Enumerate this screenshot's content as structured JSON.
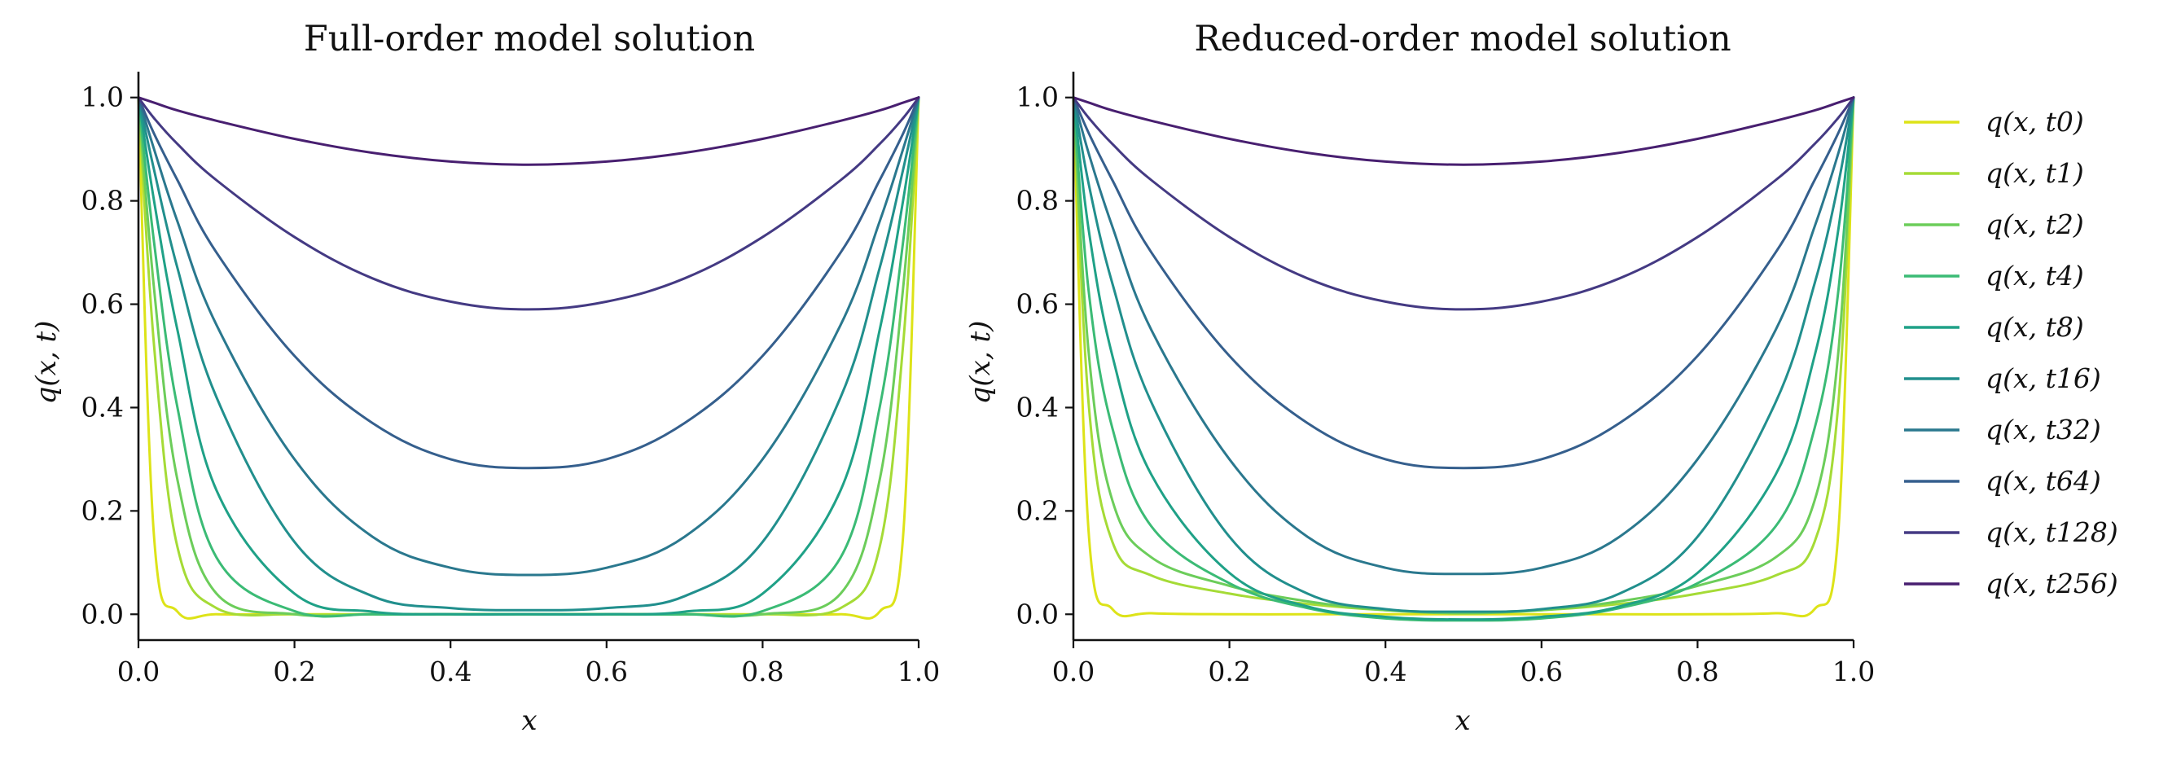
{
  "legend": {
    "placement": "right-outside",
    "entries": [
      "q(x, t0)",
      "q(x, t1)",
      "q(x, t2)",
      "q(x, t4)",
      "q(x, t8)",
      "q(x, t16)",
      "q(x, t32)",
      "q(x, t64)",
      "q(x, t128)",
      "q(x, t256)"
    ]
  },
  "chart_data": [
    {
      "type": "line",
      "title": "Full-order model solution",
      "xlabel": "x",
      "ylabel": "q(x, t)",
      "xlim": [
        0.0,
        1.0
      ],
      "ylim": [
        -0.05,
        1.05
      ],
      "xticks": [
        "0.0",
        "0.2",
        "0.4",
        "0.6",
        "0.8",
        "1.0"
      ],
      "yticks": [
        "0.0",
        "0.2",
        "0.4",
        "0.6",
        "0.8",
        "1.0"
      ],
      "grid": false,
      "x": [
        0.0,
        0.02,
        0.05,
        0.1,
        0.2,
        0.3,
        0.4,
        0.5,
        0.6,
        0.7,
        0.8,
        0.9,
        0.95,
        0.98,
        1.0
      ],
      "series": [
        {
          "name": "q(x, t0)",
          "color": "#dde318",
          "values": [
            1.0,
            0.15,
            0.005,
            0.0,
            0.0,
            0.0,
            0.0,
            0.0,
            0.0,
            0.0,
            0.0,
            0.0,
            0.005,
            0.15,
            1.0
          ]
        },
        {
          "name": "q(x, t1)",
          "color": "#a5db36",
          "values": [
            1.0,
            0.52,
            0.13,
            0.012,
            0.0,
            0.0,
            0.0,
            0.0,
            0.0,
            0.0,
            0.0,
            0.012,
            0.13,
            0.52,
            1.0
          ]
        },
        {
          "name": "q(x, t2)",
          "color": "#6ccd5a",
          "values": [
            1.0,
            0.63,
            0.26,
            0.04,
            0.0,
            0.0,
            0.0,
            0.0,
            0.0,
            0.0,
            0.0,
            0.04,
            0.26,
            0.63,
            1.0
          ]
        },
        {
          "name": "q(x, t4)",
          "color": "#3bbb75",
          "values": [
            1.0,
            0.72,
            0.4,
            0.11,
            0.006,
            0.0,
            0.0,
            0.0,
            0.0,
            0.0,
            0.006,
            0.11,
            0.4,
            0.72,
            1.0
          ]
        },
        {
          "name": "q(x, t8)",
          "color": "#1fa187",
          "values": [
            1.0,
            0.8,
            0.55,
            0.24,
            0.04,
            0.005,
            0.0,
            0.0,
            0.0,
            0.005,
            0.04,
            0.24,
            0.55,
            0.8,
            1.0
          ]
        },
        {
          "name": "q(x, t16)",
          "color": "#218f8d",
          "values": [
            1.0,
            0.86,
            0.67,
            0.42,
            0.14,
            0.035,
            0.012,
            0.008,
            0.012,
            0.035,
            0.14,
            0.42,
            0.67,
            0.86,
            1.0
          ]
        },
        {
          "name": "q(x, t32)",
          "color": "#2a788e",
          "values": [
            1.0,
            0.9,
            0.76,
            0.56,
            0.3,
            0.15,
            0.09,
            0.076,
            0.09,
            0.15,
            0.3,
            0.56,
            0.76,
            0.9,
            1.0
          ]
        },
        {
          "name": "q(x, t64)",
          "color": "#355f8d",
          "values": [
            1.0,
            0.93,
            0.84,
            0.7,
            0.5,
            0.37,
            0.3,
            0.283,
            0.3,
            0.37,
            0.5,
            0.7,
            0.84,
            0.93,
            1.0
          ]
        },
        {
          "name": "q(x, t128)",
          "color": "#443a83",
          "values": [
            1.0,
            0.96,
            0.91,
            0.84,
            0.73,
            0.65,
            0.605,
            0.59,
            0.605,
            0.65,
            0.73,
            0.84,
            0.91,
            0.96,
            1.0
          ]
        },
        {
          "name": "q(x, t256)",
          "color": "#481f70",
          "values": [
            1.0,
            0.99,
            0.975,
            0.955,
            0.92,
            0.893,
            0.876,
            0.87,
            0.876,
            0.893,
            0.92,
            0.955,
            0.975,
            0.99,
            1.0
          ]
        }
      ]
    },
    {
      "type": "line",
      "title": "Reduced-order model solution",
      "xlabel": "x",
      "ylabel": "q(x, t)",
      "xlim": [
        0.0,
        1.0
      ],
      "ylim": [
        -0.05,
        1.05
      ],
      "xticks": [
        "0.0",
        "0.2",
        "0.4",
        "0.6",
        "0.8",
        "1.0"
      ],
      "yticks": [
        "0.0",
        "0.2",
        "0.4",
        "0.6",
        "0.8",
        "1.0"
      ],
      "grid": false,
      "x": [
        0.0,
        0.02,
        0.05,
        0.1,
        0.2,
        0.3,
        0.4,
        0.5,
        0.6,
        0.7,
        0.8,
        0.9,
        0.95,
        0.98,
        1.0
      ],
      "series": [
        {
          "name": "q(x, t0)",
          "color": "#dde318",
          "values": [
            1.0,
            0.15,
            0.01,
            0.002,
            0.0,
            0.0,
            0.0,
            0.0,
            0.0,
            0.0,
            0.0,
            0.002,
            0.01,
            0.15,
            1.0
          ]
        },
        {
          "name": "q(x, t1)",
          "color": "#a5db36",
          "values": [
            1.0,
            0.4,
            0.14,
            0.075,
            0.04,
            0.02,
            0.008,
            0.004,
            0.008,
            0.02,
            0.04,
            0.075,
            0.14,
            0.4,
            1.0
          ]
        },
        {
          "name": "q(x, t2)",
          "color": "#6ccd5a",
          "values": [
            1.0,
            0.5,
            0.22,
            0.11,
            0.055,
            0.025,
            0.008,
            0.002,
            0.008,
            0.025,
            0.055,
            0.11,
            0.22,
            0.5,
            1.0
          ]
        },
        {
          "name": "q(x, t4)",
          "color": "#3bbb75",
          "values": [
            1.0,
            0.62,
            0.36,
            0.17,
            0.06,
            0.012,
            -0.008,
            -0.012,
            -0.008,
            0.012,
            0.06,
            0.17,
            0.36,
            0.62,
            1.0
          ]
        },
        {
          "name": "q(x, t8)",
          "color": "#1fa187",
          "values": [
            1.0,
            0.74,
            0.5,
            0.27,
            0.08,
            0.015,
            -0.005,
            -0.01,
            -0.005,
            0.015,
            0.08,
            0.27,
            0.5,
            0.74,
            1.0
          ]
        },
        {
          "name": "q(x, t16)",
          "color": "#218f8d",
          "values": [
            1.0,
            0.83,
            0.64,
            0.41,
            0.15,
            0.04,
            0.01,
            0.005,
            0.01,
            0.04,
            0.15,
            0.41,
            0.64,
            0.83,
            1.0
          ]
        },
        {
          "name": "q(x, t32)",
          "color": "#2a788e",
          "values": [
            1.0,
            0.89,
            0.75,
            0.55,
            0.3,
            0.15,
            0.09,
            0.078,
            0.09,
            0.15,
            0.3,
            0.55,
            0.75,
            0.89,
            1.0
          ]
        },
        {
          "name": "q(x, t64)",
          "color": "#355f8d",
          "values": [
            1.0,
            0.93,
            0.84,
            0.7,
            0.5,
            0.37,
            0.3,
            0.283,
            0.3,
            0.37,
            0.5,
            0.7,
            0.84,
            0.93,
            1.0
          ]
        },
        {
          "name": "q(x, t128)",
          "color": "#443a83",
          "values": [
            1.0,
            0.96,
            0.91,
            0.84,
            0.73,
            0.65,
            0.605,
            0.59,
            0.605,
            0.65,
            0.73,
            0.84,
            0.91,
            0.96,
            1.0
          ]
        },
        {
          "name": "q(x, t256)",
          "color": "#481f70",
          "values": [
            1.0,
            0.99,
            0.975,
            0.955,
            0.92,
            0.893,
            0.876,
            0.87,
            0.876,
            0.893,
            0.92,
            0.955,
            0.975,
            0.99,
            1.0
          ]
        }
      ]
    }
  ]
}
